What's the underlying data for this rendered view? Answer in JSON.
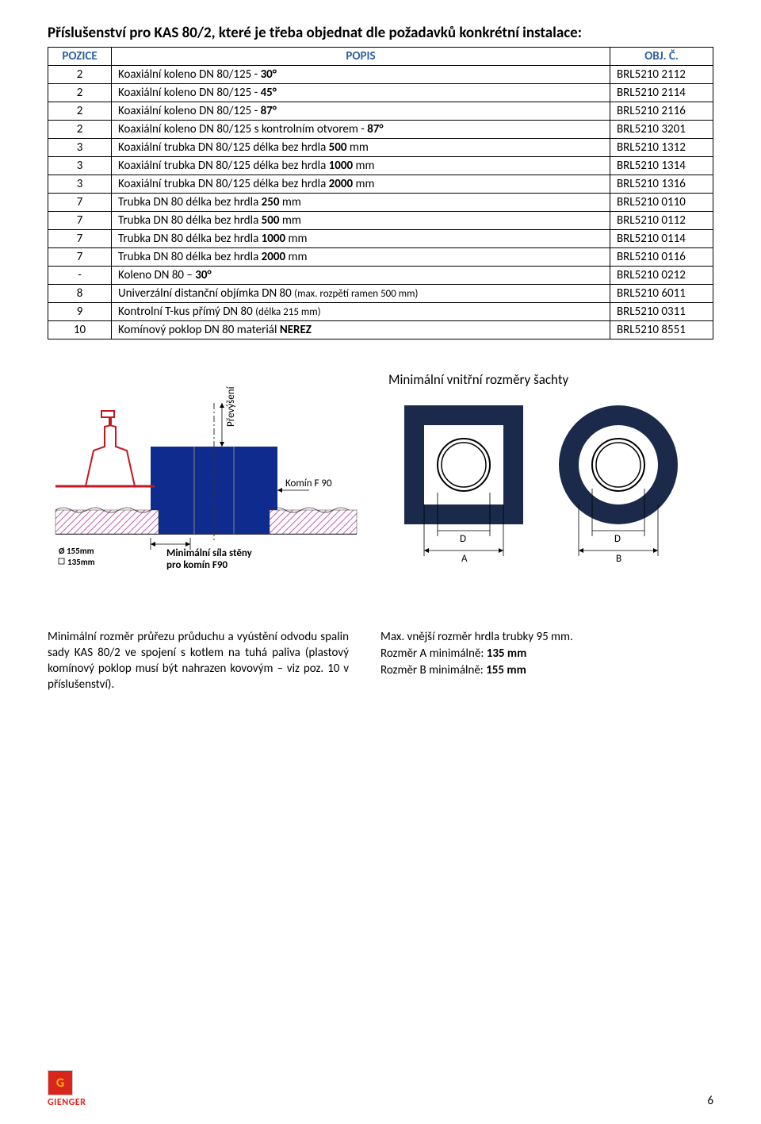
{
  "title": "Příslušenství pro KAS 80/2, které je třeba objednat dle požadavků konkrétní instalace:",
  "table": {
    "headers": {
      "pos": "POZICE",
      "popis": "POPIS",
      "obj": "OBJ. Č."
    },
    "rows": [
      {
        "pos": "2",
        "popis": "Koaxiální koleno DN 80/125 - 30°",
        "obj": "BRL5210 2112"
      },
      {
        "pos": "2",
        "popis": "Koaxiální koleno DN 80/125 - 45°",
        "obj": "BRL5210 2114"
      },
      {
        "pos": "2",
        "popis": "Koaxiální koleno DN 80/125 - 87°",
        "obj": "BRL5210 2116"
      },
      {
        "pos": "2",
        "popis": "Koaxiální koleno DN 80/125 s kontrolním otvorem - 87°",
        "obj": "BRL5210 3201"
      },
      {
        "pos": "3",
        "popis": "Koaxiální trubka DN 80/125 délka bez hrdla 500 mm",
        "obj": "BRL5210 1312"
      },
      {
        "pos": "3",
        "popis": "Koaxiální trubka DN 80/125 délka bez hrdla 1000 mm",
        "obj": "BRL5210 1314"
      },
      {
        "pos": "3",
        "popis": "Koaxiální trubka DN 80/125 délka bez hrdla 2000 mm",
        "obj": "BRL5210 1316"
      },
      {
        "pos": "7",
        "popis": "Trubka DN 80 délka bez hrdla 250 mm",
        "obj": "BRL5210 0110"
      },
      {
        "pos": "7",
        "popis": "Trubka DN 80 délka bez hrdla 500 mm",
        "obj": "BRL5210 0112"
      },
      {
        "pos": "7",
        "popis": "Trubka DN 80 délka bez hrdla 1000 mm",
        "obj": "BRL5210 0114"
      },
      {
        "pos": "7",
        "popis": "Trubka DN 80 délka bez hrdla 2000 mm",
        "obj": "BRL5210 0116"
      },
      {
        "pos": "-",
        "popis": "Koleno DN 80 – 30°",
        "obj": "BRL5210 0212"
      },
      {
        "pos": "8",
        "popis": "Univerzální distanční objímka DN 80 (max. rozpětí ramen 500 mm)",
        "obj": "BRL5210 6011"
      },
      {
        "pos": "9",
        "popis": "Kontrolní T-kus přímý DN 80 (délka 215 mm)",
        "obj": "BRL5210 0311"
      },
      {
        "pos": "10",
        "popis": "Komínový poklop DN 80 materiál NEREZ",
        "obj": "BRL5210 8551"
      }
    ],
    "bold_map": {
      "0": [
        "30°"
      ],
      "1": [
        "45°"
      ],
      "2": [
        "87°"
      ],
      "3": [
        "87°"
      ],
      "4": [
        "500"
      ],
      "5": [
        "1000"
      ],
      "6": [
        "2000"
      ],
      "7": [
        "250"
      ],
      "8": [
        "500"
      ],
      "9": [
        "1000"
      ],
      "10": [
        "2000"
      ],
      "11": [
        "30°"
      ],
      "14": [
        "NEREZ"
      ]
    }
  },
  "diagram_left": {
    "prevyseni": "Převýšení",
    "komin": "Komín F 90",
    "text1": "Minimální síla stěny",
    "text2": "pro komín F90",
    "o155": "Ø 155mm",
    "sq135": "135mm",
    "colors": {
      "red": "#c4181e",
      "blue": "#0f2b8e",
      "hatch": "#c060b0",
      "gray": "#999999"
    }
  },
  "diagram_right": {
    "title": "Minimální vnitřní rozměry šachty",
    "labels": {
      "D": "D",
      "A": "A",
      "B": "B"
    },
    "colors": {
      "navy": "#1b2a4a",
      "white": "#ffffff"
    }
  },
  "caption_left": "Minimální rozměr průřezu průduchu a vyústění odvodu spalin sady KAS 80/2 ve spojení s kotlem na tuhá paliva (plastový komínový poklop musí být nahrazen kovovým – viz poz. 10 v příslušenství).",
  "caption_right": {
    "line1": "Max. vnější rozměr hrdla trubky 95 mm.",
    "line2a": "Rozměr A minimálně: ",
    "line2b": "135 mm",
    "line3a": "Rozměr B minimálně: ",
    "line3b": "155 mm"
  },
  "footer": {
    "logo_g": "G",
    "logo_text": "GIENGER",
    "page": "6"
  }
}
